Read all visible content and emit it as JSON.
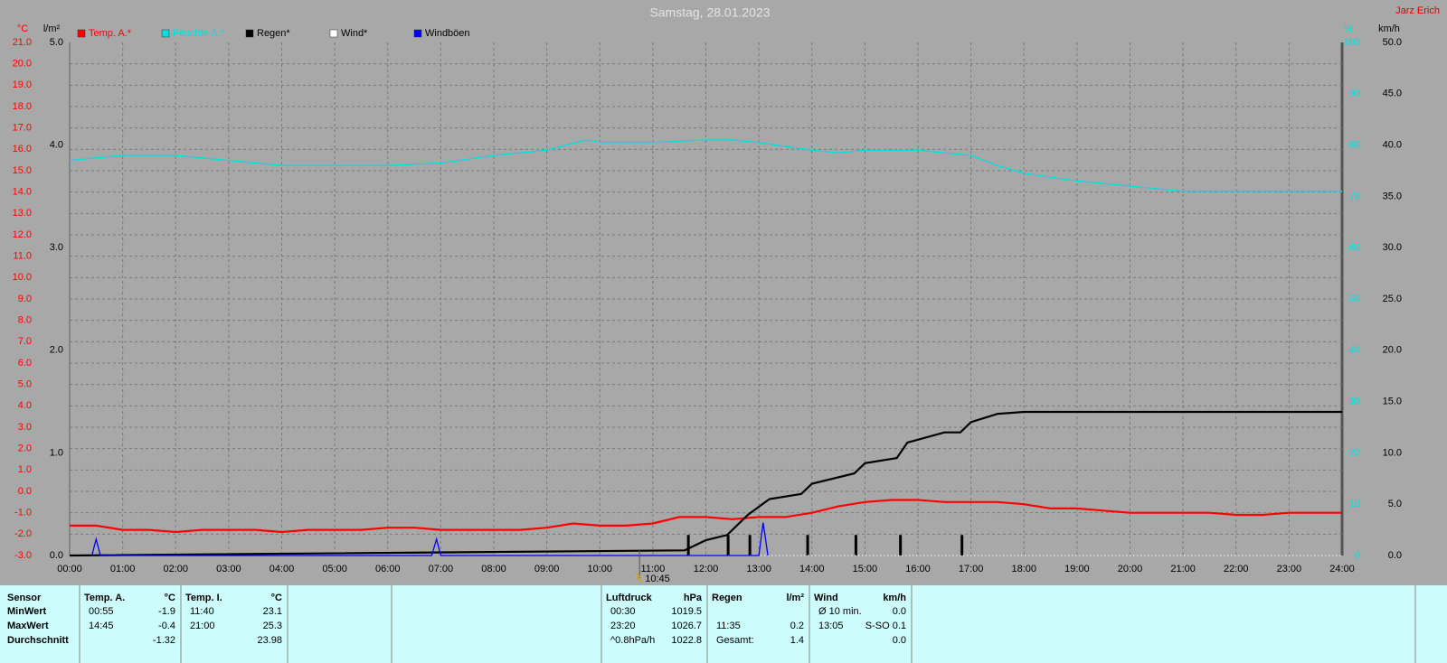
{
  "chart_data": {
    "type": "line",
    "title": "Samstag, 28.01.2023",
    "author": "Jarz Erich",
    "y_label": "°C",
    "y2_label": "l/m²",
    "y3_label": "%",
    "y4_label": "km/h",
    "grid": true,
    "xlim": [
      0,
      24
    ],
    "xticks": [
      {
        "value": 0,
        "label": "00:00"
      },
      {
        "value": 1,
        "label": "01:00"
      },
      {
        "value": 2,
        "label": "02:00"
      },
      {
        "value": 3,
        "label": "03:00"
      },
      {
        "value": 4,
        "label": "04:00"
      },
      {
        "value": 5,
        "label": "05:00"
      },
      {
        "value": 6,
        "label": "06:00"
      },
      {
        "value": 7,
        "label": "07:00"
      },
      {
        "value": 8,
        "label": "08:00"
      },
      {
        "value": 9,
        "label": "09:00"
      },
      {
        "value": 10,
        "label": "10:00"
      },
      {
        "value": 11,
        "label": "11:00"
      },
      {
        "value": 12,
        "label": "12:00"
      },
      {
        "value": 13,
        "label": "13:00"
      },
      {
        "value": 14,
        "label": "14:00"
      },
      {
        "value": 15,
        "label": "15:00"
      },
      {
        "value": 16,
        "label": "16:00"
      },
      {
        "value": 17,
        "label": "17:00"
      },
      {
        "value": 18,
        "label": "18:00"
      },
      {
        "value": 19,
        "label": "19:00"
      },
      {
        "value": 20,
        "label": "20:00"
      },
      {
        "value": 21,
        "label": "21:00"
      },
      {
        "value": 22,
        "label": "22:00"
      },
      {
        "value": 23,
        "label": "23:00"
      },
      {
        "value": 24,
        "label": "24:00"
      }
    ],
    "ylim": [
      -3,
      21
    ],
    "yticks": [
      {
        "value": -3,
        "label": "-3.0"
      },
      {
        "value": -2,
        "label": "-2.0"
      },
      {
        "value": -1,
        "label": "-1.0"
      },
      {
        "value": 0,
        "label": "0.0"
      },
      {
        "value": 1,
        "label": "1.0"
      },
      {
        "value": 2,
        "label": "2.0"
      },
      {
        "value": 3,
        "label": "3.0"
      },
      {
        "value": 4,
        "label": "4.0"
      },
      {
        "value": 5,
        "label": "5.0"
      },
      {
        "value": 6,
        "label": "6.0"
      },
      {
        "value": 7,
        "label": "7.0"
      },
      {
        "value": 8,
        "label": "8.0"
      },
      {
        "value": 9,
        "label": "9.0"
      },
      {
        "value": 10,
        "label": "10.0"
      },
      {
        "value": 11,
        "label": "11.0"
      },
      {
        "value": 12,
        "label": "12.0"
      },
      {
        "value": 13,
        "label": "13.0"
      },
      {
        "value": 14,
        "label": "14.0"
      },
      {
        "value": 15,
        "label": "15.0"
      },
      {
        "value": 16,
        "label": "16.0"
      },
      {
        "value": 17,
        "label": "17.0"
      },
      {
        "value": 18,
        "label": "18.0"
      },
      {
        "value": 19,
        "label": "19.0"
      },
      {
        "value": 20,
        "label": "20.0"
      },
      {
        "value": 21,
        "label": "21.0"
      }
    ],
    "y2lim": [
      0,
      5
    ],
    "y2ticks": [
      {
        "value": 0,
        "label": "0.0"
      },
      {
        "value": 1,
        "label": "1.0"
      },
      {
        "value": 2,
        "label": "2.0"
      },
      {
        "value": 3,
        "label": "3.0"
      },
      {
        "value": 4,
        "label": "4.0"
      },
      {
        "value": 5,
        "label": "5.0"
      }
    ],
    "y3lim": [
      0,
      100
    ],
    "y3ticks": [
      0,
      10,
      20,
      30,
      40,
      50,
      60,
      70,
      80,
      90,
      100
    ],
    "y4lim": [
      0,
      50
    ],
    "y4ticks": [
      {
        "value": 0,
        "label": "0.0"
      },
      {
        "value": 5,
        "label": "5.0"
      },
      {
        "value": 10,
        "label": "10.0"
      },
      {
        "value": 15,
        "label": "15.0"
      },
      {
        "value": 20,
        "label": "20.0"
      },
      {
        "value": 25,
        "label": "25.0"
      },
      {
        "value": 30,
        "label": "30.0"
      },
      {
        "value": 35,
        "label": "35.0"
      },
      {
        "value": 40,
        "label": "40.0"
      },
      {
        "value": 45,
        "label": "45.0"
      },
      {
        "value": 50,
        "label": "50.0"
      }
    ],
    "series": [
      {
        "name": "Temp. A.*",
        "color": "#ff0000",
        "axis": "y",
        "x": [
          0,
          0.5,
          1,
          1.5,
          2,
          2.5,
          3,
          3.5,
          4,
          4.5,
          5,
          5.5,
          6,
          6.5,
          7,
          7.5,
          8,
          8.5,
          9,
          9.5,
          10,
          10.5,
          11,
          11.5,
          12,
          12.5,
          13,
          13.5,
          14,
          14.5,
          15,
          15.5,
          16,
          16.5,
          17,
          17.5,
          18,
          18.5,
          19,
          19.5,
          20,
          20.5,
          21,
          21.5,
          22,
          22.5,
          23,
          23.5,
          24
        ],
        "values": [
          -1.6,
          -1.6,
          -1.8,
          -1.8,
          -1.9,
          -1.8,
          -1.8,
          -1.8,
          -1.9,
          -1.8,
          -1.8,
          -1.8,
          -1.7,
          -1.7,
          -1.8,
          -1.8,
          -1.8,
          -1.8,
          -1.7,
          -1.5,
          -1.6,
          -1.6,
          -1.5,
          -1.2,
          -1.2,
          -1.3,
          -1.2,
          -1.2,
          -1.0,
          -0.7,
          -0.5,
          -0.4,
          -0.4,
          -0.5,
          -0.5,
          -0.5,
          -0.6,
          -0.8,
          -0.8,
          -0.9,
          -1.0,
          -1.0,
          -1.0,
          -1.0,
          -1.1,
          -1.1,
          -1.0,
          -1.0,
          -1.0
        ]
      },
      {
        "name": "Feuchte A.*",
        "color": "#00e0e0",
        "axis": "y3",
        "x": [
          0,
          1,
          2,
          3,
          4,
          5,
          6,
          7,
          8,
          9,
          9.75,
          10,
          11,
          12,
          12.5,
          13,
          14,
          14.5,
          15,
          16,
          17,
          17.5,
          18,
          19,
          20,
          21,
          22,
          23,
          24
        ],
        "values": [
          77,
          78,
          78,
          77,
          76,
          76,
          76,
          76.5,
          78,
          79,
          81,
          80.5,
          80.5,
          81,
          81,
          80.5,
          79,
          78.5,
          79,
          79,
          78,
          76,
          74.5,
          73,
          72,
          71,
          71,
          71,
          71
        ]
      },
      {
        "name": "Regen*",
        "color": "#000000",
        "axis": "y2",
        "x": [
          0,
          11.6,
          12,
          12.4,
          12.8,
          13.2,
          13.8,
          14,
          14.8,
          15,
          15.6,
          15.8,
          16.5,
          16.8,
          17,
          17.5,
          18,
          24
        ],
        "values": [
          0,
          0.05,
          0.15,
          0.2,
          0.4,
          0.55,
          0.6,
          0.7,
          0.8,
          0.9,
          0.95,
          1.1,
          1.2,
          1.2,
          1.3,
          1.38,
          1.4,
          1.4
        ]
      },
      {
        "name": "Wind*",
        "color": "#ffffff",
        "axis": "y4",
        "x": [
          11.67,
          24
        ],
        "values": [
          0,
          0
        ]
      },
      {
        "name": "Windböen",
        "color": "#0000ff",
        "axis": "y4",
        "x": [
          0.42,
          0.5,
          0.58,
          6.83,
          6.92,
          7.0,
          13.0,
          13.08,
          13.17
        ],
        "values": [
          0,
          1.6,
          0,
          0,
          1.6,
          0,
          0,
          3.2,
          0
        ]
      }
    ],
    "rain_events": {
      "color": "#000000",
      "axis": "y2",
      "x": [
        11.67,
        12.42,
        12.83,
        13.92,
        14.83,
        15.67,
        16.83
      ],
      "values": [
        0.2,
        0.2,
        0.2,
        0.2,
        0.2,
        0.2,
        0.2
      ]
    },
    "annotation": {
      "x": 10.75,
      "label": "10:45"
    }
  },
  "stats": {
    "sensor_header": "Sensor",
    "row_labels": [
      "MinWert",
      "MaxWert",
      "Durchschnitt"
    ],
    "groups": [
      {
        "title": "Temp. A.",
        "unit": "°C",
        "rows": [
          [
            "00:55",
            "-1.9"
          ],
          [
            "14:45",
            "-0.4"
          ],
          [
            null,
            "-1.32"
          ]
        ]
      },
      {
        "title": "Temp. I.",
        "unit": "°C",
        "rows": [
          [
            "11:40",
            "23.1"
          ],
          [
            "21:00",
            "25.3"
          ],
          [
            null,
            "23.98"
          ]
        ]
      },
      {
        "title": "Luftdruck",
        "unit": "hPa",
        "rows": [
          [
            "00:30",
            "1019.5"
          ],
          [
            "23:20",
            "1026.7"
          ],
          [
            "^0.8hPa/h",
            "1022.8"
          ]
        ]
      },
      {
        "title": "Regen",
        "unit": "l/m²",
        "rows": [
          [
            null,
            null
          ],
          [
            "11:35",
            "0.2"
          ],
          [
            "Gesamt:",
            "1.4"
          ]
        ]
      },
      {
        "title": "Wind",
        "unit": "km/h",
        "rows": [
          [
            "Ø 10 min.",
            "0.0"
          ],
          [
            "13:05",
            "S-SO 0.1"
          ],
          [
            null,
            "0.0"
          ]
        ]
      }
    ]
  }
}
